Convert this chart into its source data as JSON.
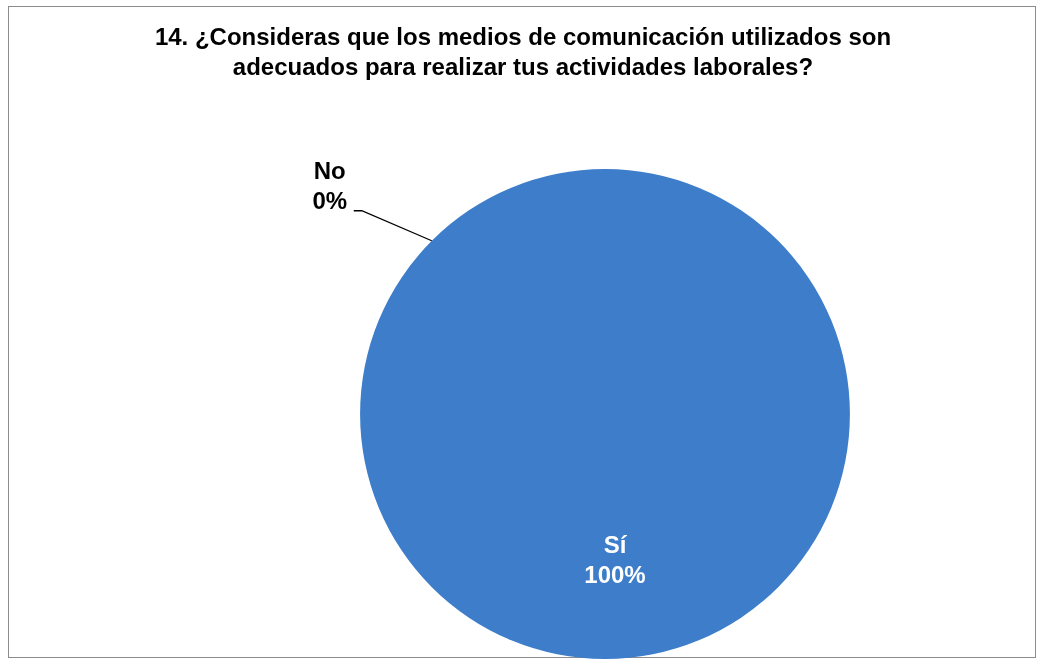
{
  "chart_data": {
    "type": "pie",
    "title": "14. ¿Consideras que los medios de comunicación utilizados son adecuados para realizar tus actividades laborales?",
    "categories": [
      "No",
      "Sí"
    ],
    "values": [
      0,
      100
    ],
    "colors": [
      "#c0504d",
      "#3d7dca"
    ],
    "value_labels": [
      "0%",
      "100%"
    ],
    "legend": false
  }
}
